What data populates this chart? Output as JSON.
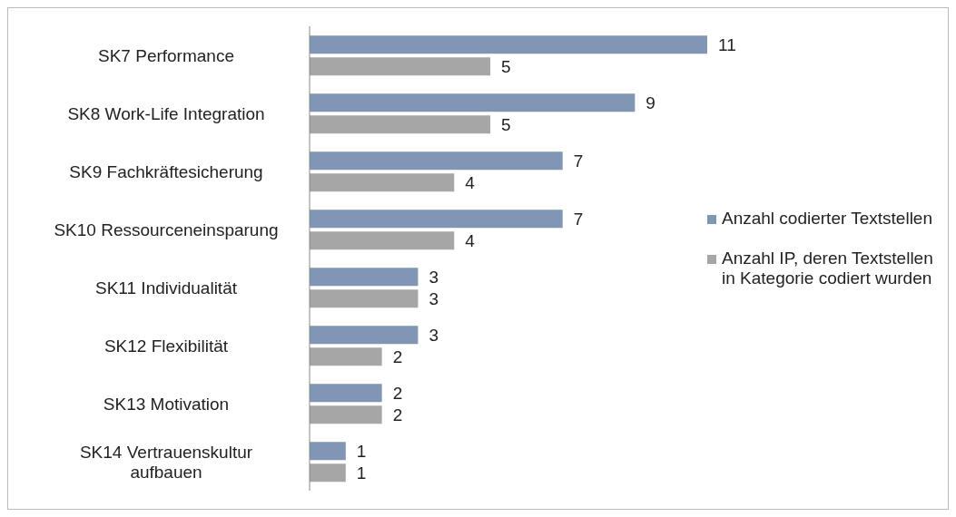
{
  "chart_data": {
    "type": "bar",
    "orientation": "horizontal",
    "categories": [
      "SK7 Performance",
      "SK8 Work-Life Integration",
      "SK9 Fachkräftesicherung",
      "SK10 Ressourceneinsparung",
      "SK11 Individualität",
      "SK12 Flexibilität",
      "SK13 Motivation",
      "SK14 Vertrauenskultur aufbauen"
    ],
    "series": [
      {
        "name": "Anzahl codierter Textstellen",
        "color": "#7f96b4",
        "values": [
          11,
          9,
          7,
          7,
          3,
          3,
          2,
          1
        ]
      },
      {
        "name": "Anzahl IP, deren Textstellen in Kategorie codiert wurden",
        "color": "#a6a6a6",
        "values": [
          5,
          5,
          4,
          4,
          3,
          2,
          2,
          1
        ]
      }
    ],
    "data_labels": true,
    "legend": "right"
  }
}
